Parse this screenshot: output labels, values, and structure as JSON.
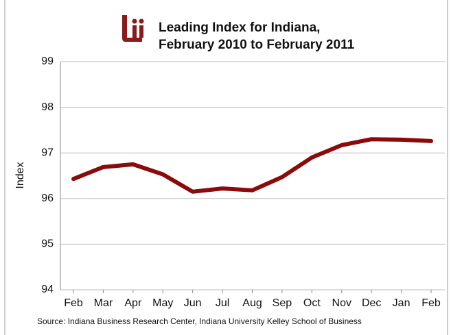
{
  "chart_data": {
    "type": "line",
    "title": "Leading Index for Indiana,",
    "subtitle": "February 2010 to February 2011",
    "ylabel": "Index",
    "source": "Source: Indiana Business Research Center, Indiana University Kelley School of Business",
    "categories": [
      "Feb",
      "Mar",
      "Apr",
      "May",
      "Jun",
      "Jul",
      "Aug",
      "Sep",
      "Oct",
      "Nov",
      "Dec",
      "Jan",
      "Feb"
    ],
    "series": [
      {
        "name": "Leading Index",
        "color": "#8b0a0a",
        "values": [
          96.43,
          96.69,
          96.75,
          96.53,
          96.15,
          96.22,
          96.18,
          96.47,
          96.9,
          97.17,
          97.3,
          97.29,
          97.26
        ]
      }
    ],
    "ylim": [
      94,
      99
    ],
    "yticks": [
      94,
      95,
      96,
      97,
      98,
      99
    ],
    "grid": true
  }
}
